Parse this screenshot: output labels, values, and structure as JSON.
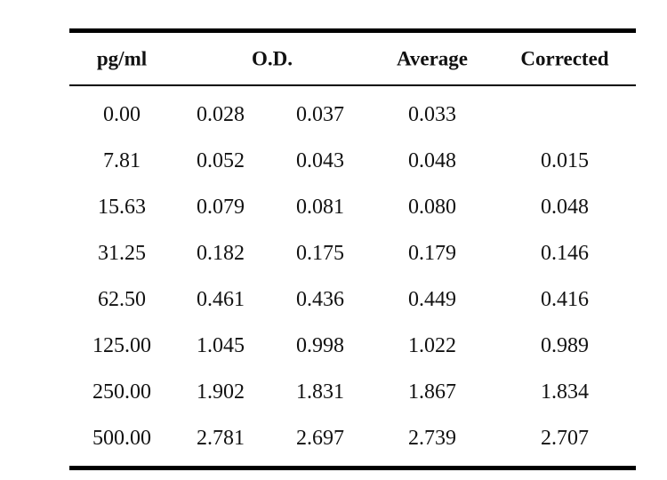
{
  "table": {
    "headers": {
      "concentration": "pg/ml",
      "od": "O.D.",
      "average": "Average",
      "corrected": "Corrected"
    },
    "rows": [
      {
        "concentration": "0.00",
        "od1": "0.028",
        "od2": "0.037",
        "average": "0.033",
        "corrected": ""
      },
      {
        "concentration": "7.81",
        "od1": "0.052",
        "od2": "0.043",
        "average": "0.048",
        "corrected": "0.015"
      },
      {
        "concentration": "15.63",
        "od1": "0.079",
        "od2": "0.081",
        "average": "0.080",
        "corrected": "0.048"
      },
      {
        "concentration": "31.25",
        "od1": "0.182",
        "od2": "0.175",
        "average": "0.179",
        "corrected": "0.146"
      },
      {
        "concentration": "62.50",
        "od1": "0.461",
        "od2": "0.436",
        "average": "0.449",
        "corrected": "0.416"
      },
      {
        "concentration": "125.00",
        "od1": "1.045",
        "od2": "0.998",
        "average": "1.022",
        "corrected": "0.989"
      },
      {
        "concentration": "250.00",
        "od1": "1.902",
        "od2": "1.831",
        "average": "1.867",
        "corrected": "1.834"
      },
      {
        "concentration": "500.00",
        "od1": "2.781",
        "od2": "2.697",
        "average": "2.739",
        "corrected": "2.707"
      }
    ]
  }
}
